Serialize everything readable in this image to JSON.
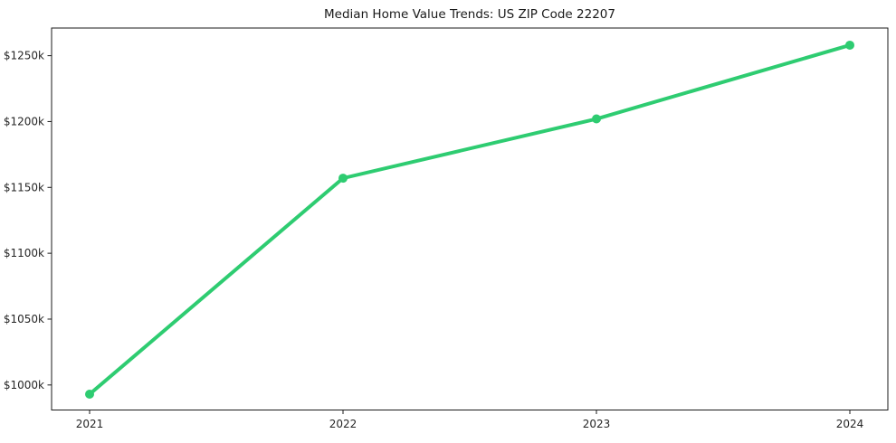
{
  "chart_data": {
    "type": "line",
    "title": "Median Home Value Trends: US ZIP Code 22207",
    "x": [
      2021,
      2022,
      2023,
      2024
    ],
    "x_tick_labels": [
      "2021",
      "2022",
      "2023",
      "2024"
    ],
    "values": [
      993,
      1157,
      1202,
      1258
    ],
    "y_ticks": [
      1000,
      1050,
      1100,
      1150,
      1200,
      1250
    ],
    "y_tick_labels": [
      "$1000k",
      "$1050k",
      "$1100k",
      "$1150k",
      "$1200k",
      "$1250k"
    ],
    "xlim": [
      2020.85,
      2024.15
    ],
    "ylim": [
      981,
      1271
    ],
    "grid": false,
    "legend": "none",
    "line_color": "#2ecc71",
    "marker": "circle",
    "marker_radius": 5,
    "line_width": 4,
    "spine_color": "#1a1a1a",
    "text_color": "#262626",
    "background": "#ffffff"
  }
}
